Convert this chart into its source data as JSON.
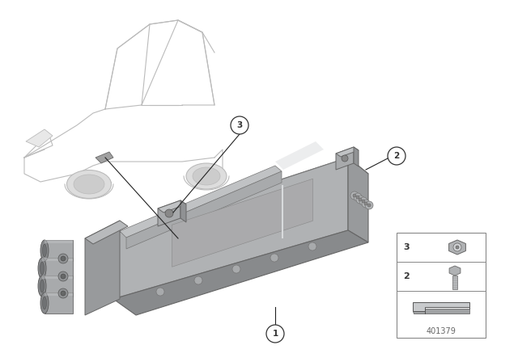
{
  "background_color": "#ffffff",
  "diagram_number": "401379",
  "line_color": "#222222",
  "text_color": "#333333",
  "circle_bg": "#ffffff",
  "circle_border": "#333333",
  "gray_main": "#b0b2b4",
  "gray_top": "#c8cacc",
  "gray_dark": "#888a8c",
  "gray_side": "#989a9c",
  "gray_light": "#d8dadc",
  "gray_pipe": "#a0a2a4",
  "car_color": "#cccccc",
  "legend_border": "#888888"
}
